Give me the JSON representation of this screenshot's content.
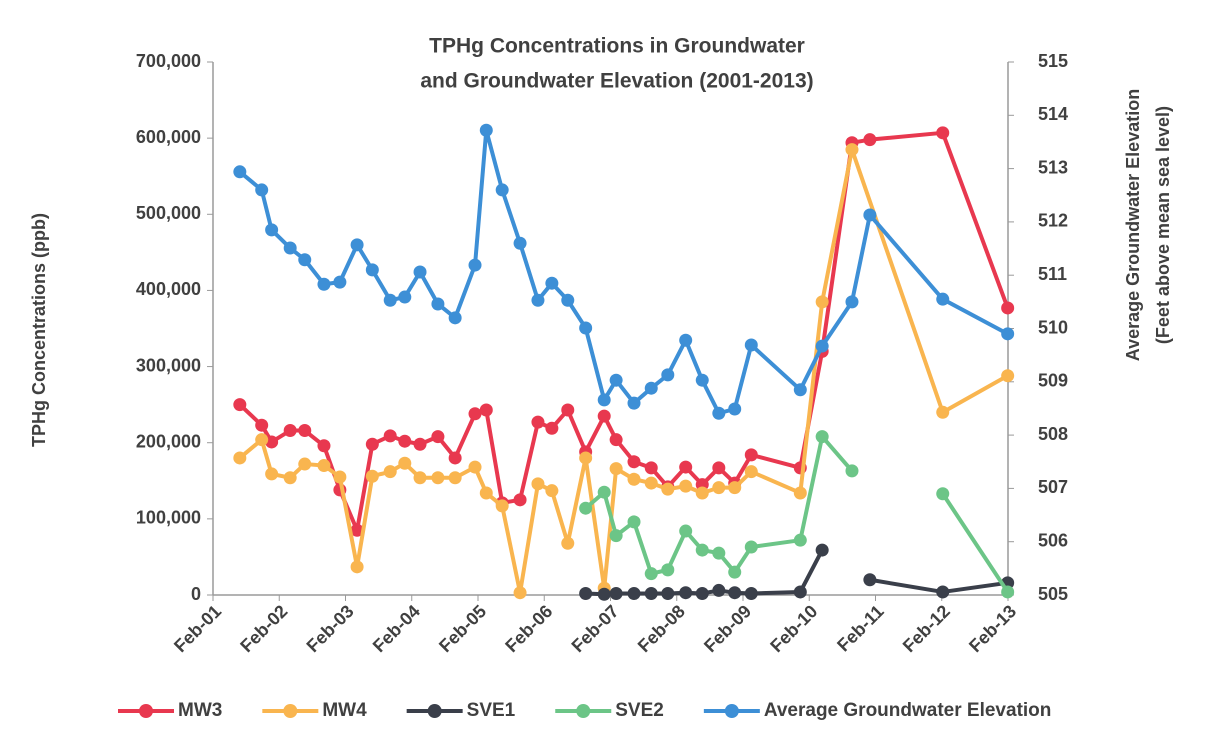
{
  "chart_data": {
    "type": "line",
    "title": [
      "TPHg Concentrations in Groundwater",
      "and Groundwater Elevation (2001-2013)"
    ],
    "y_label": "TPHg Concentrations (ppb)",
    "y2_label": [
      "Average Groundwater Elevation",
      "(Feet above mean sea level)"
    ],
    "xlim": [
      2001.085,
      2013.085
    ],
    "xticks": [
      {
        "value": 2001.085,
        "label": "Feb-01"
      },
      {
        "value": 2002.085,
        "label": "Feb-02"
      },
      {
        "value": 2003.085,
        "label": "Feb-03"
      },
      {
        "value": 2004.085,
        "label": "Feb-04"
      },
      {
        "value": 2005.085,
        "label": "Feb-05"
      },
      {
        "value": 2006.085,
        "label": "Feb-06"
      },
      {
        "value": 2007.085,
        "label": "Feb-07"
      },
      {
        "value": 2008.085,
        "label": "Feb-08"
      },
      {
        "value": 2009.085,
        "label": "Feb-09"
      },
      {
        "value": 2010.085,
        "label": "Feb-10"
      },
      {
        "value": 2011.085,
        "label": "Feb-11"
      },
      {
        "value": 2012.085,
        "label": "Feb-12"
      },
      {
        "value": 2013.085,
        "label": "Feb-13"
      }
    ],
    "ylim": [
      0,
      700000
    ],
    "yticks": [
      0,
      {
        "value": 100000,
        "label": "100,000"
      },
      {
        "value": 200000,
        "label": "200,000"
      },
      {
        "value": 300000,
        "label": "300,000"
      },
      {
        "value": 400000,
        "label": "400,000"
      },
      {
        "value": 500000,
        "label": "500,000"
      },
      {
        "value": 600000,
        "label": "600,000"
      },
      {
        "value": 700000,
        "label": "700,000"
      }
    ],
    "y2lim": [
      505,
      515
    ],
    "y2ticks": [
      505,
      506,
      507,
      508,
      509,
      510,
      511,
      512,
      513,
      514,
      515
    ],
    "grid": false,
    "legend": "bottom",
    "series": [
      {
        "name": "MW3",
        "color": "#e8384f",
        "x": [
          2001.49,
          2001.82,
          2001.97,
          2002.25,
          2002.47,
          2002.76,
          2003.0,
          2003.26,
          2003.49,
          2003.76,
          2003.98,
          2004.21,
          2004.48,
          2004.74,
          2005.04,
          2005.21,
          2005.45,
          2005.72,
          2005.99,
          2006.2,
          2006.44,
          2006.71,
          2006.99,
          2007.17,
          2007.44,
          2007.7,
          2007.95,
          2008.22,
          2008.47,
          2008.72,
          2008.96,
          2009.21,
          2009.95,
          2010.28,
          2010.73,
          2011.0,
          2012.1,
          2013.08
        ],
        "values": [
          250000,
          223000,
          201000,
          216000,
          216000,
          196000,
          138000,
          85000,
          198000,
          209000,
          202000,
          198000,
          208000,
          180000,
          238000,
          243000,
          121000,
          125000,
          227000,
          219000,
          243000,
          188000,
          235000,
          204000,
          175000,
          167000,
          142000,
          168000,
          145000,
          167000,
          147000,
          184000,
          167000,
          320000,
          594000,
          598000,
          607000,
          377000
        ]
      },
      {
        "name": "MW4",
        "color": "#f9b54f",
        "x": [
          2001.49,
          2001.82,
          2001.97,
          2002.25,
          2002.47,
          2002.76,
          2003.0,
          2003.26,
          2003.49,
          2003.76,
          2003.98,
          2004.21,
          2004.48,
          2004.74,
          2005.04,
          2005.21,
          2005.45,
          2005.72,
          2005.99,
          2006.2,
          2006.44,
          2006.71,
          2006.99,
          2007.17,
          2007.44,
          2007.7,
          2007.95,
          2008.22,
          2008.47,
          2008.72,
          2008.96,
          2009.21,
          2009.95,
          2010.28,
          2010.73,
          2012.1,
          2013.08
        ],
        "values": [
          180000,
          204000,
          159000,
          154000,
          172000,
          170000,
          155000,
          37000,
          156000,
          162000,
          173000,
          154000,
          154000,
          154000,
          168000,
          134000,
          117000,
          3000,
          146000,
          137000,
          68000,
          180000,
          9000,
          166000,
          152000,
          147000,
          139000,
          143000,
          134000,
          141000,
          141000,
          162000,
          134000,
          385000,
          585000,
          240000,
          288000
        ]
      },
      {
        "name": "SVE1",
        "color": "#3a3f4a",
        "x": [
          2006.71,
          2006.99,
          2007.17,
          2007.44,
          2007.7,
          2007.95,
          2008.22,
          2008.47,
          2008.72,
          2008.96,
          2009.21,
          2009.95,
          2010.28,
          2010.73,
          2011.0,
          2012.1,
          2013.08
        ],
        "values": [
          2000,
          1000,
          2000,
          2000,
          2000,
          2000,
          3000,
          2000,
          6000,
          3000,
          2000,
          4000,
          59000,
          null,
          20000,
          4000,
          16000
        ]
      },
      {
        "name": "SVE2",
        "color": "#6cc587",
        "x": [
          2006.71,
          2006.99,
          2007.17,
          2007.44,
          2007.7,
          2007.95,
          2008.22,
          2008.47,
          2008.72,
          2008.96,
          2009.21,
          2009.95,
          2010.28,
          2010.73,
          2011.0,
          2012.1,
          2013.08
        ],
        "values": [
          114000,
          135000,
          78000,
          96000,
          28000,
          33000,
          84000,
          59000,
          55000,
          30000,
          63000,
          72000,
          208000,
          163000,
          null,
          133000,
          4000
        ]
      },
      {
        "name": "Average Groundwater Elevation",
        "color": "#3d8fd6",
        "axis": "y2",
        "x": [
          2001.49,
          2001.82,
          2001.97,
          2002.25,
          2002.47,
          2002.76,
          2003.0,
          2003.26,
          2003.49,
          2003.76,
          2003.98,
          2004.21,
          2004.48,
          2004.74,
          2005.04,
          2005.21,
          2005.45,
          2005.72,
          2005.99,
          2006.2,
          2006.44,
          2006.71,
          2006.99,
          2007.17,
          2007.44,
          2007.7,
          2007.95,
          2008.22,
          2008.47,
          2008.72,
          2008.96,
          2009.21,
          2009.95,
          2010.28,
          2010.73,
          2011.0,
          2012.1,
          2013.08
        ],
        "values": [
          512.94,
          512.6,
          511.85,
          511.51,
          511.29,
          510.83,
          510.87,
          511.57,
          511.1,
          510.53,
          510.59,
          511.06,
          510.46,
          510.2,
          511.19,
          513.72,
          512.6,
          511.6,
          510.53,
          510.85,
          510.53,
          510.01,
          508.66,
          509.03,
          508.6,
          508.88,
          509.13,
          509.78,
          509.03,
          508.41,
          508.49,
          509.69,
          508.85,
          509.67,
          510.5,
          512.13,
          510.55,
          509.9
        ]
      }
    ]
  }
}
